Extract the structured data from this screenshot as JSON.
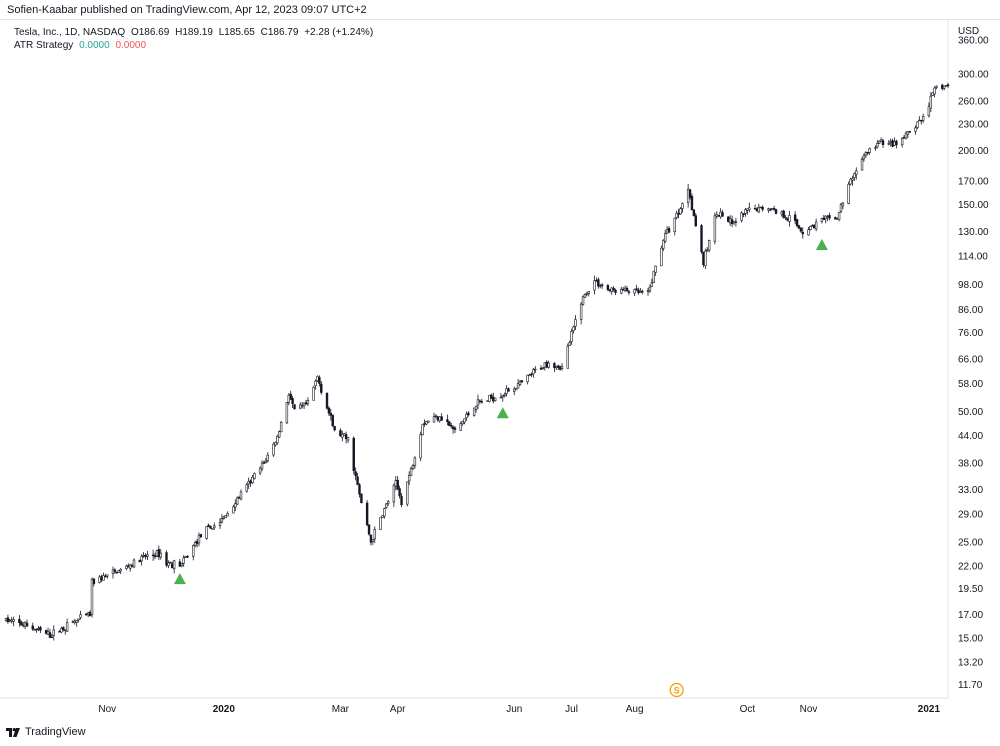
{
  "header": {
    "published": "Sofien-Kaabar published on TradingView.com, Apr 12, 2023 09:07 UTC+2"
  },
  "legend": {
    "instrument": "Tesla, Inc., 1D, NASDAQ",
    "o": "O186.69",
    "h": "H189.19",
    "l": "L185.65",
    "c": "C186.79",
    "change": "+2.28 (+1.24%)",
    "indicator_name": "ATR Strategy",
    "indicator_v1": "0.0000",
    "indicator_v2": "0.0000"
  },
  "axis": {
    "currency": "USD"
  },
  "footer": {
    "brand": "TradingView"
  },
  "colors": {
    "candle": "#131722",
    "signal": "#4caf50",
    "pos": "#26a69a",
    "neg": "#ef5350",
    "marker": "#f59d0b"
  },
  "chart_data": {
    "type": "candlestick",
    "scale": "log",
    "ylim": [
      10.9,
      400
    ],
    "y_ticks": [
      "360.00",
      "300.00",
      "260.00",
      "230.00",
      "200.00",
      "170.00",
      "150.00",
      "130.00",
      "114.00",
      "98.00",
      "86.00",
      "76.00",
      "66.00",
      "58.00",
      "50.00",
      "44.00",
      "38.00",
      "33.00",
      "29.00",
      "25.00",
      "22.00",
      "19.50",
      "17.00",
      "15.00",
      "13.20",
      "11.70"
    ],
    "x_ticks": [
      {
        "label": "Nov",
        "date": "2019-11-01"
      },
      {
        "label": "2020",
        "date": "2020-01-01"
      },
      {
        "label": "Mar",
        "date": "2020-03-02"
      },
      {
        "label": "Apr",
        "date": "2020-04-01"
      },
      {
        "label": "Jun",
        "date": "2020-06-01"
      },
      {
        "label": "Jul",
        "date": "2020-07-01"
      },
      {
        "label": "Aug",
        "date": "2020-08-03"
      },
      {
        "label": "Oct",
        "date": "2020-10-01"
      },
      {
        "label": "Nov",
        "date": "2020-11-02"
      },
      {
        "label": "2021",
        "date": "2021-01-04"
      }
    ],
    "x_range": [
      "2019-09-09",
      "2021-01-14"
    ],
    "price_path": [
      [
        "2019-09-09",
        16.5
      ],
      [
        "2019-09-20",
        16.0
      ],
      [
        "2019-10-02",
        15.2
      ],
      [
        "2019-10-14",
        16.3
      ],
      [
        "2019-10-23",
        17.0
      ],
      [
        "2019-10-24",
        20.2
      ],
      [
        "2019-11-08",
        21.5
      ],
      [
        "2019-11-22",
        23.2
      ],
      [
        "2019-11-29",
        23.5
      ],
      [
        "2019-12-02",
        22.3
      ],
      [
        "2019-12-10",
        22.2
      ],
      [
        "2019-12-20",
        26.0
      ],
      [
        "2019-12-31",
        28.0
      ],
      [
        "2020-01-13",
        33.5
      ],
      [
        "2020-01-22",
        38.0
      ],
      [
        "2020-01-29",
        43.5
      ],
      [
        "2020-02-04",
        55.0
      ],
      [
        "2020-02-07",
        50.0
      ],
      [
        "2020-02-14",
        52.0
      ],
      [
        "2020-02-19",
        60.0
      ],
      [
        "2020-02-28",
        45.0
      ],
      [
        "2020-03-06",
        43.0
      ],
      [
        "2020-03-12",
        32.0
      ],
      [
        "2020-03-18",
        25.0
      ],
      [
        "2020-03-24",
        29.0
      ],
      [
        "2020-03-31",
        34.0
      ],
      [
        "2020-04-03",
        31.0
      ],
      [
        "2020-04-09",
        38.0
      ],
      [
        "2020-04-14",
        47.0
      ],
      [
        "2020-04-23",
        49.0
      ],
      [
        "2020-05-01",
        45.0
      ],
      [
        "2020-05-12",
        52.0
      ],
      [
        "2020-05-26",
        55.0
      ],
      [
        "2020-06-05",
        58.0
      ],
      [
        "2020-06-12",
        62.0
      ],
      [
        "2020-06-19",
        65.0
      ],
      [
        "2020-06-26",
        63.0
      ],
      [
        "2020-07-01",
        75.0
      ],
      [
        "2020-07-06",
        90.0
      ],
      [
        "2020-07-13",
        100.0
      ],
      [
        "2020-07-21",
        95.0
      ],
      [
        "2020-07-30",
        95.0
      ],
      [
        "2020-08-10",
        93.0
      ],
      [
        "2020-08-18",
        125.0
      ],
      [
        "2020-08-28",
        150.0
      ],
      [
        "2020-08-31",
        165.0
      ],
      [
        "2020-09-08",
        110.0
      ],
      [
        "2020-09-15",
        145.0
      ],
      [
        "2020-09-23",
        135.0
      ],
      [
        "2020-10-01",
        145.0
      ],
      [
        "2020-10-12",
        148.0
      ],
      [
        "2020-10-23",
        140.0
      ],
      [
        "2020-10-30",
        130.0
      ],
      [
        "2020-11-09",
        138.0
      ],
      [
        "2020-11-17",
        140.0
      ],
      [
        "2020-11-24",
        170.0
      ],
      [
        "2020-12-01",
        195.0
      ],
      [
        "2020-12-10",
        210.0
      ],
      [
        "2020-12-18",
        205.0
      ],
      [
        "2020-12-31",
        235.0
      ],
      [
        "2021-01-08",
        280.0
      ],
      [
        "2021-01-14",
        282.0
      ]
    ],
    "signals": [
      {
        "type": "long",
        "date": "2019-12-09",
        "price": 20.5
      },
      {
        "type": "long",
        "date": "2020-05-26",
        "price": 49.5
      },
      {
        "type": "long",
        "date": "2020-11-09",
        "price": 121.0
      }
    ],
    "event_marker": {
      "label": "S",
      "date": "2020-08-25"
    }
  }
}
